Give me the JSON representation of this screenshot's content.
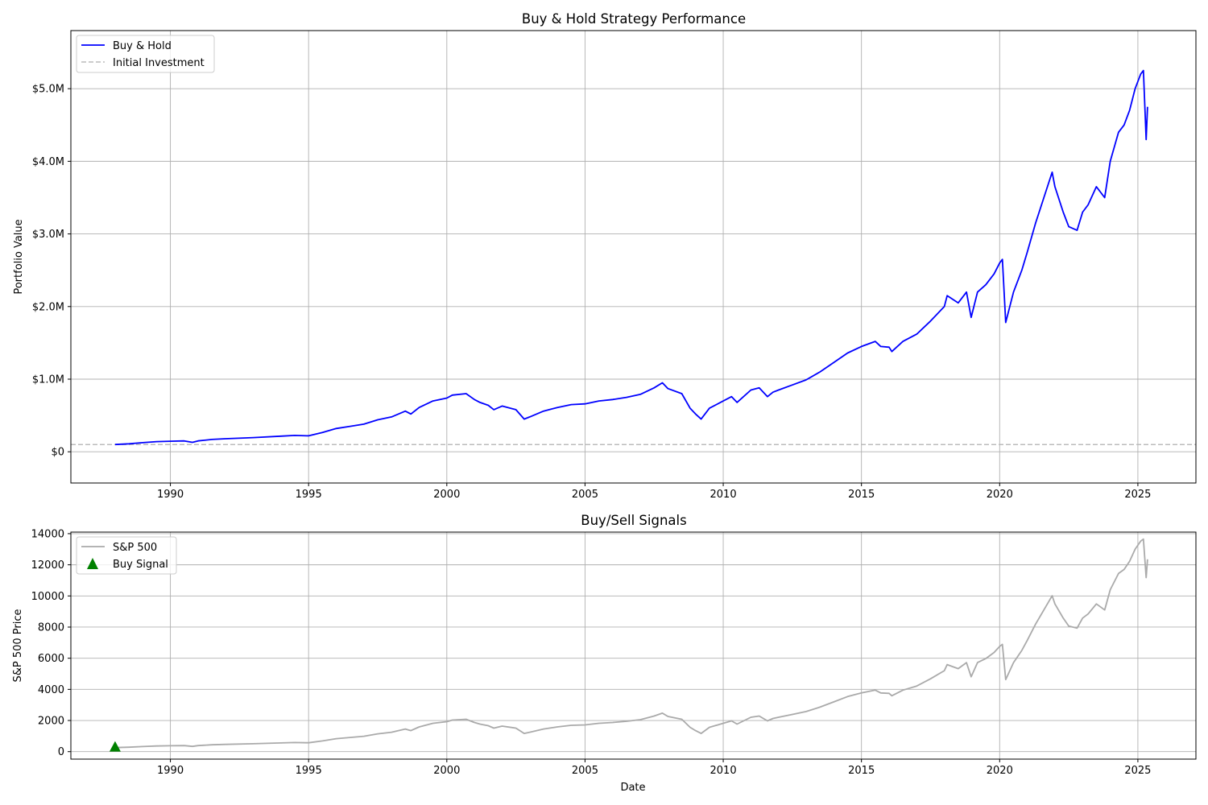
{
  "chart_data": [
    {
      "type": "line",
      "title": "Buy & Hold Strategy Performance",
      "xlabel": "",
      "ylabel": "Portfolio Value",
      "xlim": [
        1986.4,
        2027.1
      ],
      "ylim": [
        -430000,
        5800000
      ],
      "grid": true,
      "legend_position": "top-left",
      "x_ticks": [
        1990,
        1995,
        2000,
        2005,
        2010,
        2015,
        2020,
        2025
      ],
      "x_tick_labels": [
        "1990",
        "1995",
        "2000",
        "2005",
        "2010",
        "2015",
        "2020",
        "2025"
      ],
      "y_ticks": [
        0,
        1000000,
        2000000,
        3000000,
        4000000,
        5000000
      ],
      "y_tick_labels": [
        "$0",
        "$1.0M",
        "$2.0M",
        "$3.0M",
        "$4.0M",
        "$5.0M"
      ],
      "series": [
        {
          "name": "Buy & Hold",
          "color": "#0000ff",
          "style": "solid",
          "x": [
            1988.0,
            1988.5,
            1989.0,
            1989.5,
            1990.0,
            1990.5,
            1990.8,
            1991.0,
            1991.5,
            1992.0,
            1993.0,
            1994.0,
            1994.5,
            1995.0,
            1995.5,
            1996.0,
            1996.5,
            1997.0,
            1997.5,
            1998.0,
            1998.5,
            1998.7,
            1999.0,
            1999.5,
            2000.0,
            2000.2,
            2000.7,
            2001.0,
            2001.2,
            2001.5,
            2001.7,
            2002.0,
            2002.5,
            2002.8,
            2003.0,
            2003.5,
            2004.0,
            2004.5,
            2005.0,
            2005.5,
            2006.0,
            2006.5,
            2007.0,
            2007.5,
            2007.8,
            2008.0,
            2008.5,
            2008.8,
            2009.0,
            2009.2,
            2009.5,
            2010.0,
            2010.3,
            2010.5,
            2011.0,
            2011.3,
            2011.6,
            2011.8,
            2012.0,
            2012.5,
            2013.0,
            2013.5,
            2014.0,
            2014.5,
            2015.0,
            2015.5,
            2015.7,
            2016.0,
            2016.1,
            2016.5,
            2017.0,
            2017.5,
            2018.0,
            2018.1,
            2018.5,
            2018.8,
            2018.97,
            2019.2,
            2019.5,
            2019.8,
            2020.0,
            2020.1,
            2020.22,
            2020.5,
            2020.8,
            2021.0,
            2021.3,
            2021.6,
            2021.9,
            2022.0,
            2022.3,
            2022.5,
            2022.8,
            2023.0,
            2023.2,
            2023.5,
            2023.8,
            2024.0,
            2024.3,
            2024.5,
            2024.7,
            2024.9,
            2025.1,
            2025.2,
            2025.3,
            2025.35
          ],
          "y": [
            100000,
            110000,
            125000,
            140000,
            145000,
            150000,
            130000,
            150000,
            170000,
            180000,
            195000,
            215000,
            225000,
            220000,
            265000,
            320000,
            350000,
            380000,
            440000,
            480000,
            560000,
            520000,
            610000,
            700000,
            740000,
            780000,
            800000,
            720000,
            680000,
            640000,
            580000,
            630000,
            580000,
            450000,
            480000,
            560000,
            610000,
            650000,
            660000,
            700000,
            720000,
            750000,
            790000,
            880000,
            950000,
            870000,
            800000,
            600000,
            520000,
            450000,
            600000,
            700000,
            760000,
            680000,
            850000,
            880000,
            760000,
            820000,
            850000,
            920000,
            990000,
            1100000,
            1230000,
            1360000,
            1450000,
            1520000,
            1450000,
            1440000,
            1380000,
            1520000,
            1620000,
            1800000,
            2000000,
            2150000,
            2050000,
            2200000,
            1850000,
            2200000,
            2300000,
            2450000,
            2600000,
            2650000,
            1780000,
            2200000,
            2500000,
            2750000,
            3150000,
            3500000,
            3850000,
            3650000,
            3300000,
            3100000,
            3050000,
            3300000,
            3400000,
            3650000,
            3500000,
            4000000,
            4400000,
            4500000,
            4700000,
            5000000,
            5200000,
            5250000,
            4300000,
            4750000
          ]
        },
        {
          "name": "Initial Investment",
          "color": "#bbbbbb",
          "style": "dashed",
          "y": 100000
        }
      ]
    },
    {
      "type": "line",
      "title": "Buy/Sell Signals",
      "xlabel": "Date",
      "ylabel": "S&P 500 Price",
      "xlim": [
        1986.4,
        2027.1
      ],
      "ylim": [
        -480,
        14100
      ],
      "grid": true,
      "legend_position": "top-left",
      "x_ticks": [
        1990,
        1995,
        2000,
        2005,
        2010,
        2015,
        2020,
        2025
      ],
      "x_tick_labels": [
        "1990",
        "1995",
        "2000",
        "2005",
        "2010",
        "2015",
        "2020",
        "2025"
      ],
      "y_ticks": [
        0,
        2000,
        4000,
        6000,
        8000,
        10000,
        12000,
        14000
      ],
      "y_tick_labels": [
        "0",
        "2000",
        "4000",
        "6000",
        "8000",
        "10000",
        "12000",
        "14000"
      ],
      "series": [
        {
          "name": "S&P 500",
          "color": "#aaaaaa",
          "style": "solid",
          "x": [
            1988.0,
            1988.5,
            1989.0,
            1989.5,
            1990.0,
            1990.5,
            1990.8,
            1991.0,
            1991.5,
            1992.0,
            1993.0,
            1994.0,
            1994.5,
            1995.0,
            1995.5,
            1996.0,
            1996.5,
            1997.0,
            1997.5,
            1998.0,
            1998.5,
            1998.7,
            1999.0,
            1999.5,
            2000.0,
            2000.2,
            2000.7,
            2001.0,
            2001.2,
            2001.5,
            2001.7,
            2002.0,
            2002.5,
            2002.8,
            2003.0,
            2003.5,
            2004.0,
            2004.5,
            2005.0,
            2005.5,
            2006.0,
            2006.5,
            2007.0,
            2007.5,
            2007.8,
            2008.0,
            2008.5,
            2008.8,
            2009.0,
            2009.2,
            2009.5,
            2010.0,
            2010.3,
            2010.5,
            2011.0,
            2011.3,
            2011.6,
            2011.8,
            2012.0,
            2012.5,
            2013.0,
            2013.5,
            2014.0,
            2014.5,
            2015.0,
            2015.5,
            2015.7,
            2016.0,
            2016.1,
            2016.5,
            2017.0,
            2017.5,
            2018.0,
            2018.1,
            2018.5,
            2018.8,
            2018.97,
            2019.2,
            2019.5,
            2019.8,
            2020.0,
            2020.1,
            2020.22,
            2020.5,
            2020.8,
            2021.0,
            2021.3,
            2021.6,
            2021.9,
            2022.0,
            2022.3,
            2022.5,
            2022.8,
            2023.0,
            2023.2,
            2023.5,
            2023.8,
            2024.0,
            2024.3,
            2024.5,
            2024.7,
            2024.9,
            2025.1,
            2025.2,
            2025.3,
            2025.35
          ],
          "y": [
            260,
            286,
            325,
            364,
            377,
            390,
            338,
            390,
            442,
            468,
            507,
            559,
            585,
            572,
            689,
            832,
            910,
            988,
            1144,
            1248,
            1456,
            1352,
            1586,
            1820,
            1924,
            2028,
            2080,
            1872,
            1768,
            1664,
            1508,
            1638,
            1508,
            1170,
            1248,
            1456,
            1586,
            1690,
            1716,
            1820,
            1872,
            1950,
            2054,
            2288,
            2470,
            2262,
            2080,
            1560,
            1352,
            1170,
            1560,
            1820,
            1976,
            1768,
            2210,
            2288,
            1976,
            2132,
            2210,
            2392,
            2574,
            2860,
            3198,
            3536,
            3770,
            3952,
            3770,
            3744,
            3588,
            3952,
            4212,
            4680,
            5200,
            5590,
            5330,
            5720,
            4810,
            5720,
            5980,
            6370,
            6760,
            6890,
            4628,
            5720,
            6500,
            7150,
            8190,
            9100,
            10010,
            9490,
            8580,
            8060,
            7930,
            8580,
            8840,
            9490,
            9100,
            10400,
            11440,
            11700,
            12220,
            13000,
            13520,
            13650,
            11180,
            12350
          ]
        },
        {
          "name": "Buy Signal",
          "color": "#008000",
          "marker": "triangle-up",
          "x": [
            1988.0
          ],
          "y": [
            260
          ]
        }
      ]
    }
  ]
}
